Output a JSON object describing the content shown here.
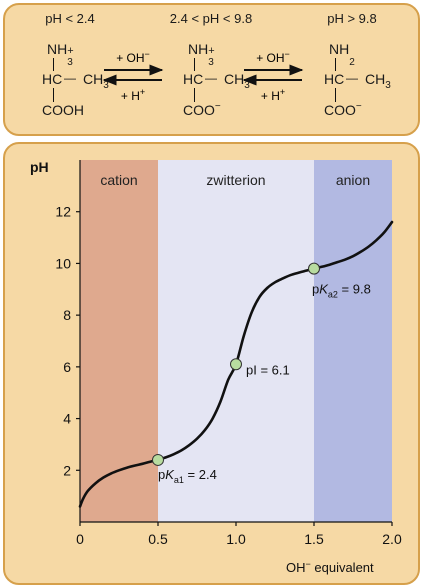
{
  "species": [
    {
      "condition": "pH < 2.4",
      "amino_group": "NH",
      "amino_sub": "3",
      "amino_sup": "+",
      "alpha_carbon": "HC",
      "side_chain": "CH",
      "side_chain_sub": "3",
      "carboxyl": "COOH",
      "carboxyl_sup": ""
    },
    {
      "condition": "2.4 < pH < 9.8",
      "amino_group": "NH",
      "amino_sub": "3",
      "amino_sup": "+",
      "alpha_carbon": "HC",
      "side_chain": "CH",
      "side_chain_sub": "3",
      "carboxyl": "COO",
      "carboxyl_sup": "−"
    },
    {
      "condition": "pH > 9.8",
      "amino_group": "NH",
      "amino_sub": "2",
      "amino_sup": "",
      "alpha_carbon": "HC",
      "side_chain": "CH",
      "side_chain_sub": "3",
      "carboxyl": "COO",
      "carboxyl_sup": "−"
    }
  ],
  "equilibria": [
    {
      "forward": "+ OH",
      "forward_sup": "−",
      "reverse": "+ H",
      "reverse_sup": "+"
    },
    {
      "forward": "+ OH",
      "forward_sup": "−",
      "reverse": "+ H",
      "reverse_sup": "+"
    }
  ],
  "chart_data": {
    "type": "line",
    "ylabel": "pH",
    "xlabel": "OH",
    "xlabel_sup": "−",
    "xlabel_rest": " equivalent",
    "xlim": [
      0,
      2.0
    ],
    "ylim": [
      0,
      14
    ],
    "xticks": [
      0,
      0.5,
      1.0,
      1.5,
      2.0
    ],
    "xtick_labels": [
      "0",
      "0.5",
      "1.0",
      "1.5",
      "2.0"
    ],
    "yticks": [
      2,
      4,
      6,
      8,
      10,
      12
    ],
    "ytick_labels": [
      "2",
      "4",
      "6",
      "8",
      "10",
      "12"
    ],
    "regions": [
      {
        "label": "cation",
        "x_start": 0,
        "x_end": 0.5,
        "color": "#dfa98e"
      },
      {
        "label": "zwitterion",
        "x_start": 0.5,
        "x_end": 1.5,
        "color": "#e4e5f3"
      },
      {
        "label": "anion",
        "x_start": 1.5,
        "x_end": 2.0,
        "color": "#b2b9e2"
      }
    ],
    "curve": [
      [
        0.0,
        0.6
      ],
      [
        0.02,
        0.9
      ],
      [
        0.05,
        1.2
      ],
      [
        0.1,
        1.5
      ],
      [
        0.15,
        1.72
      ],
      [
        0.2,
        1.88
      ],
      [
        0.25,
        2.0
      ],
      [
        0.3,
        2.1
      ],
      [
        0.35,
        2.18
      ],
      [
        0.4,
        2.25
      ],
      [
        0.45,
        2.33
      ],
      [
        0.5,
        2.4
      ],
      [
        0.55,
        2.5
      ],
      [
        0.6,
        2.62
      ],
      [
        0.65,
        2.77
      ],
      [
        0.7,
        2.97
      ],
      [
        0.75,
        3.22
      ],
      [
        0.8,
        3.55
      ],
      [
        0.85,
        4.0
      ],
      [
        0.9,
        4.65
      ],
      [
        0.95,
        5.5
      ],
      [
        1.0,
        6.1
      ],
      [
        1.05,
        7.2
      ],
      [
        1.1,
        8.1
      ],
      [
        1.15,
        8.7
      ],
      [
        1.2,
        9.05
      ],
      [
        1.25,
        9.27
      ],
      [
        1.3,
        9.42
      ],
      [
        1.35,
        9.55
      ],
      [
        1.4,
        9.64
      ],
      [
        1.45,
        9.72
      ],
      [
        1.5,
        9.8
      ],
      [
        1.55,
        9.87
      ],
      [
        1.6,
        9.95
      ],
      [
        1.65,
        10.05
      ],
      [
        1.7,
        10.15
      ],
      [
        1.75,
        10.28
      ],
      [
        1.8,
        10.45
      ],
      [
        1.85,
        10.65
      ],
      [
        1.9,
        10.9
      ],
      [
        1.95,
        11.2
      ],
      [
        2.0,
        11.6
      ]
    ],
    "points": [
      {
        "x": 0.5,
        "y": 2.4,
        "label_prefix": "p",
        "label_italic": "K",
        "label_sub": "a1",
        "label_suffix": " = 2.4"
      },
      {
        "x": 1.0,
        "y": 6.1,
        "label_prefix": "pI = 6.1",
        "label_italic": "",
        "label_sub": "",
        "label_suffix": ""
      },
      {
        "x": 1.5,
        "y": 9.8,
        "label_prefix": "p",
        "label_italic": "K",
        "label_sub": "a2",
        "label_suffix": " = 9.8"
      }
    ],
    "marker_color": "#b8dca0"
  }
}
